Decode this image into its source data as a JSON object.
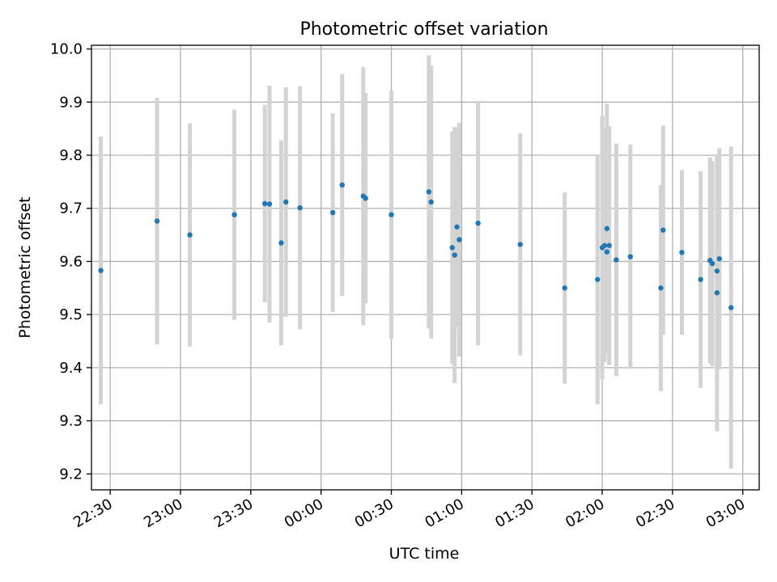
{
  "chart_data": {
    "type": "scatter",
    "title": "Photometric offset variation",
    "xlabel": "UTC time",
    "ylabel": "Photometric offset",
    "xlim": [
      "22:22",
      "03:07"
    ],
    "ylim": [
      9.17,
      10.007
    ],
    "grid": true,
    "x_tick_labels": [
      "22:30",
      "23:00",
      "23:30",
      "00:00",
      "00:30",
      "01:00",
      "01:30",
      "02:00",
      "02:30",
      "03:00"
    ],
    "y_tick_values": [
      9.2,
      9.3,
      9.4,
      9.5,
      9.6,
      9.7,
      9.8,
      9.9,
      10.0
    ],
    "y_tick_labels": [
      "9.2",
      "9.3",
      "9.4",
      "9.5",
      "9.6",
      "9.7",
      "9.8",
      "9.9",
      "10.0"
    ],
    "point_color": "#1f77b4",
    "errorbar_color": "#d3d3d3",
    "series": [
      {
        "x": [
          "22:26",
          "22:50",
          "23:04",
          "23:23",
          "23:36",
          "23:38",
          "23:43",
          "23:45",
          "23:51",
          "24:05",
          "24:09",
          "24:18",
          "24:19",
          "24:30",
          "24:46",
          "24:47",
          "24:56",
          "24:57",
          "24:58",
          "24:59",
          "25:07",
          "25:25",
          "25:44",
          "25:58",
          "26:00",
          "26:01",
          "26:02",
          "26:02",
          "26:03",
          "26:06",
          "26:12",
          "26:25",
          "26:26",
          "26:34",
          "26:42",
          "26:46",
          "26:47",
          "26:49",
          "26:49",
          "26:50",
          "26:55"
        ],
        "y": [
          9.583,
          9.676,
          9.65,
          9.688,
          9.709,
          9.708,
          9.635,
          9.712,
          9.701,
          9.692,
          9.744,
          9.723,
          9.719,
          9.688,
          9.731,
          9.712,
          9.626,
          9.612,
          9.665,
          9.641,
          9.672,
          9.632,
          9.55,
          9.566,
          9.626,
          9.63,
          9.662,
          9.618,
          9.63,
          9.603,
          9.609,
          9.55,
          9.659,
          9.617,
          9.566,
          9.602,
          9.596,
          9.582,
          9.541,
          9.605,
          9.513
        ],
        "err": [
          0.252,
          0.232,
          0.21,
          0.198,
          0.186,
          0.223,
          0.193,
          0.216,
          0.229,
          0.187,
          0.209,
          0.243,
          0.198,
          0.234,
          0.257,
          0.257,
          0.219,
          0.241,
          0.188,
          0.22,
          0.23,
          0.209,
          0.18,
          0.235,
          0.248,
          0.22,
          0.235,
          0.188,
          0.225,
          0.219,
          0.211,
          0.194,
          0.197,
          0.155,
          0.204,
          0.194,
          0.193,
          0.21,
          0.261,
          0.208,
          0.303
        ]
      }
    ]
  }
}
